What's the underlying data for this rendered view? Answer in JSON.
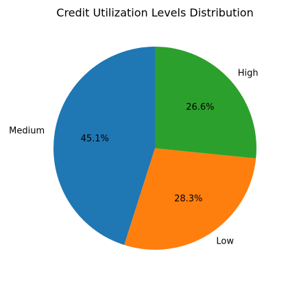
{
  "chart_data": {
    "type": "pie",
    "title": "Credit Utilization Levels Distribution",
    "categories": [
      "Medium",
      "Low",
      "High"
    ],
    "values": [
      45.1,
      28.3,
      26.6
    ],
    "value_labels": [
      "45.1%",
      "28.3%",
      "26.6%"
    ],
    "colors": [
      "#1f77b4",
      "#ff7f0e",
      "#2ca02c"
    ],
    "start_angle_deg": 90,
    "direction": "counterclockwise",
    "legend": "none"
  }
}
